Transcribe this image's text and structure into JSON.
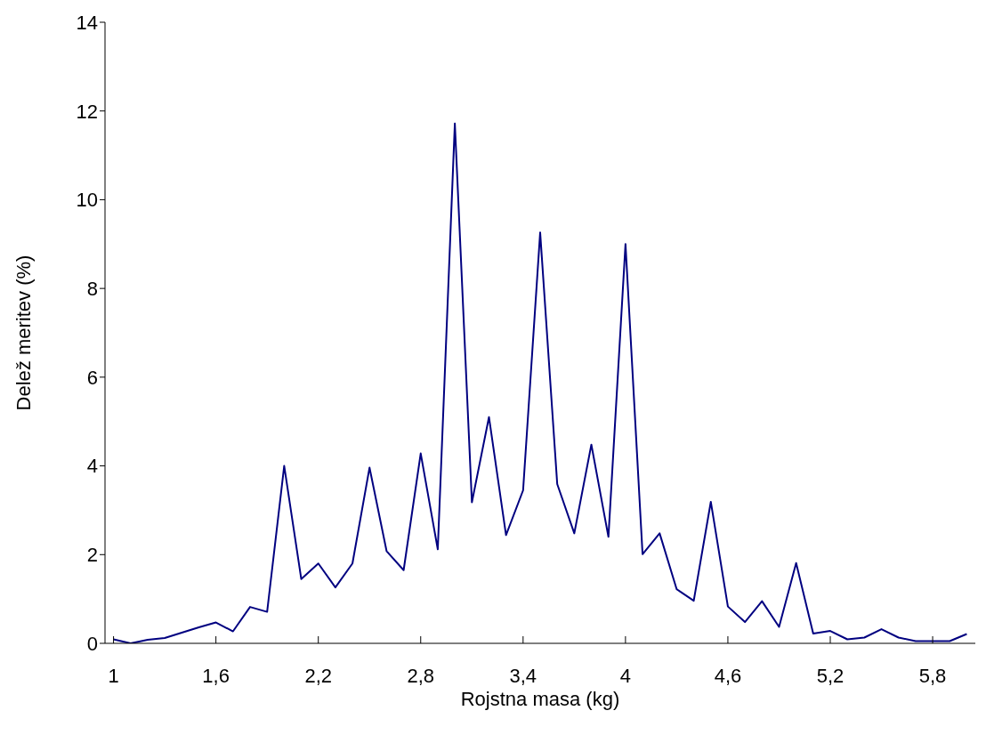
{
  "chart_data": {
    "type": "line",
    "xlabel": "Rojstna masa (kg)",
    "ylabel": "Delež meritev (%)",
    "categories": [
      "1",
      null,
      null,
      null,
      null,
      null,
      "1,6",
      null,
      null,
      null,
      null,
      null,
      "2,2",
      null,
      null,
      null,
      null,
      null,
      "2,8",
      null,
      null,
      null,
      null,
      null,
      "3,4",
      null,
      null,
      null,
      null,
      null,
      "4",
      null,
      null,
      null,
      null,
      null,
      "4,6",
      null,
      null,
      null,
      null,
      null,
      "5,2",
      null,
      null,
      null,
      null,
      null,
      "5,8",
      null,
      null
    ],
    "series": [
      {
        "color": "#000080",
        "values": [
          0.09,
          0,
          0.08,
          0.12,
          0.24,
          0.36,
          0.47,
          0.27,
          0.82,
          0.71,
          4.0,
          1.45,
          1.8,
          1.26,
          1.8,
          3.96,
          2.08,
          1.65,
          4.28,
          2.12,
          11.72,
          3.18,
          5.1,
          2.44,
          3.45,
          9.26,
          3.59,
          2.48,
          4.48,
          2.4,
          9.0,
          2.01,
          2.48,
          1.22,
          0.96,
          3.19,
          0.83,
          0.48,
          0.95,
          0.37,
          1.81,
          0.22,
          0.28,
          0.09,
          0.13,
          0.32,
          0.13,
          0.05,
          0.05,
          0.05,
          0.21
        ]
      }
    ],
    "ylim": [
      0,
      14
    ],
    "yticks": [
      0,
      2,
      4,
      6,
      8,
      10,
      12,
      14
    ],
    "grid": false,
    "legend": false,
    "marker": "none",
    "line_style": "solid"
  }
}
